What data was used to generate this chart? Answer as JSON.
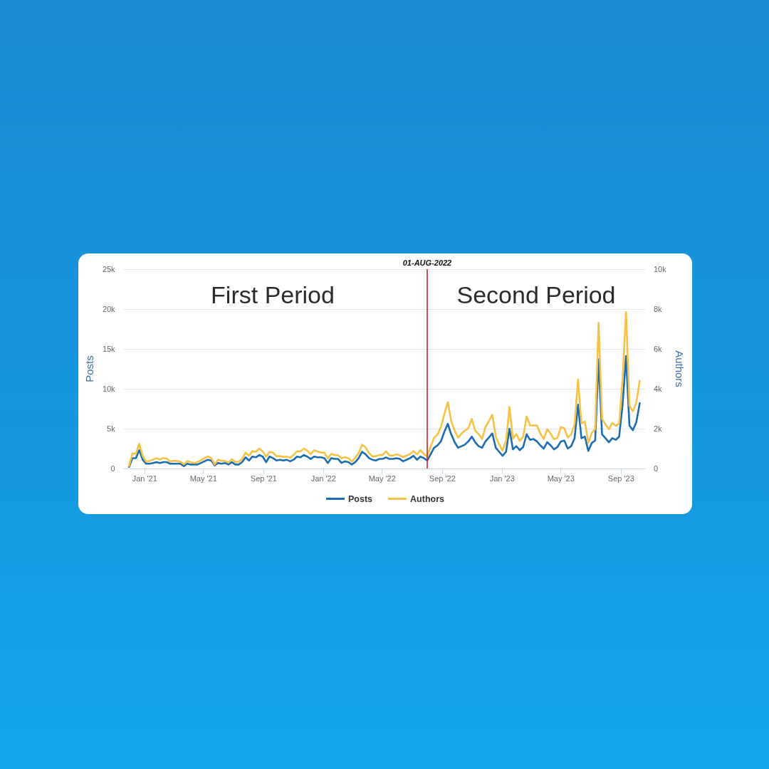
{
  "chart_data": {
    "type": "line",
    "ylabel": "Posts",
    "y2label": "Authors",
    "annotations": [
      "First Period",
      "Second Period"
    ],
    "x": [
      "2020-11-30",
      "2020-12-07",
      "2020-12-14",
      "2020-12-21",
      "2020-12-28",
      "2021-01-04",
      "2021-01-11",
      "2021-01-18",
      "2021-01-25",
      "2021-02-01",
      "2021-02-08",
      "2021-02-15",
      "2021-02-22",
      "2021-03-01",
      "2021-03-08",
      "2021-03-15",
      "2021-03-22",
      "2021-03-29",
      "2021-04-05",
      "2021-04-12",
      "2021-04-19",
      "2021-04-26",
      "2021-05-03",
      "2021-05-10",
      "2021-05-17",
      "2021-05-24",
      "2021-05-31",
      "2021-06-07",
      "2021-06-14",
      "2021-06-21",
      "2021-06-28",
      "2021-07-05",
      "2021-07-12",
      "2021-07-19",
      "2021-07-26",
      "2021-08-02",
      "2021-08-09",
      "2021-08-16",
      "2021-08-23",
      "2021-08-30",
      "2021-09-06",
      "2021-09-13",
      "2021-09-20",
      "2021-09-27",
      "2021-10-04",
      "2021-10-11",
      "2021-10-18",
      "2021-10-25",
      "2021-11-01",
      "2021-11-08",
      "2021-11-15",
      "2021-11-22",
      "2021-11-29",
      "2021-12-06",
      "2021-12-13",
      "2021-12-20",
      "2021-12-27",
      "2022-01-03",
      "2022-01-10",
      "2022-01-17",
      "2022-01-24",
      "2022-01-31",
      "2022-02-07",
      "2022-02-14",
      "2022-02-21",
      "2022-02-28",
      "2022-03-07",
      "2022-03-14",
      "2022-03-21",
      "2022-03-28",
      "2022-04-04",
      "2022-04-11",
      "2022-04-18",
      "2022-04-25",
      "2022-05-02",
      "2022-05-09",
      "2022-05-16",
      "2022-05-23",
      "2022-05-30",
      "2022-06-06",
      "2022-06-13",
      "2022-06-20",
      "2022-06-27",
      "2022-07-04",
      "2022-07-11",
      "2022-07-18",
      "2022-07-25",
      "2022-08-01",
      "2022-08-08",
      "2022-08-15",
      "2022-08-22",
      "2022-08-29",
      "2022-09-05",
      "2022-09-12",
      "2022-09-19",
      "2022-09-26",
      "2022-10-03",
      "2022-10-10",
      "2022-10-17",
      "2022-10-24",
      "2022-10-31",
      "2022-11-07",
      "2022-11-14",
      "2022-11-21",
      "2022-11-28",
      "2022-12-05",
      "2022-12-12",
      "2022-12-19",
      "2022-12-26",
      "2023-01-02",
      "2023-01-09",
      "2023-01-16",
      "2023-01-23",
      "2023-01-30",
      "2023-02-06",
      "2023-02-13",
      "2023-02-20",
      "2023-02-27",
      "2023-03-06",
      "2023-03-13",
      "2023-03-20",
      "2023-03-27",
      "2023-04-03",
      "2023-04-10",
      "2023-04-17",
      "2023-04-24",
      "2023-05-01",
      "2023-05-08",
      "2023-05-15",
      "2023-05-22",
      "2023-05-29",
      "2023-06-05",
      "2023-06-12",
      "2023-06-19",
      "2023-06-26",
      "2023-07-03",
      "2023-07-10",
      "2023-07-17",
      "2023-07-24",
      "2023-07-31",
      "2023-08-07",
      "2023-08-14",
      "2023-08-21",
      "2023-08-28",
      "2023-09-04",
      "2023-09-11",
      "2023-09-18",
      "2023-09-25",
      "2023-10-02",
      "2023-10-09"
    ],
    "series": [
      {
        "name": "Posts",
        "color": "#1b6cb0",
        "values": [
          200,
          1300,
          1300,
          2300,
          1100,
          600,
          600,
          700,
          800,
          700,
          800,
          800,
          600,
          600,
          600,
          600,
          300,
          600,
          500,
          500,
          500,
          700,
          900,
          1100,
          1000,
          400,
          700,
          600,
          700,
          500,
          800,
          500,
          500,
          800,
          1400,
          1000,
          1500,
          1400,
          1700,
          1500,
          800,
          1500,
          1300,
          1000,
          1100,
          1000,
          1100,
          900,
          1100,
          1500,
          1400,
          1700,
          1500,
          1200,
          1500,
          1400,
          1400,
          1300,
          700,
          1300,
          1200,
          1200,
          700,
          900,
          800,
          500,
          800,
          1300,
          2100,
          1800,
          1300,
          1100,
          1000,
          1200,
          1200,
          1400,
          1200,
          1200,
          1300,
          1200,
          900,
          1100,
          1300,
          1600,
          1100,
          1500,
          1300,
          1000,
          1800,
          2600,
          2900,
          3400,
          4600,
          5600,
          4300,
          3300,
          2600,
          2800,
          3000,
          3400,
          4000,
          3300,
          2800,
          2600,
          3400,
          3900,
          4400,
          2600,
          2100,
          1600,
          2100,
          5000,
          2400,
          2800,
          2300,
          2700,
          4300,
          3600,
          3700,
          3400,
          2900,
          2500,
          3300,
          2900,
          2400,
          2700,
          3400,
          3500,
          2500,
          2800,
          3800,
          8000,
          3800,
          4000,
          2200,
          3200,
          3500,
          13700,
          4300,
          3800,
          3300,
          3800,
          3600,
          4000,
          8000,
          14100,
          5400,
          4800,
          5800,
          8200
        ]
      },
      {
        "name": "Authors",
        "color": "#f6c245",
        "axis": "y2",
        "values": [
          130,
          760,
          740,
          1240,
          620,
          350,
          380,
          450,
          520,
          450,
          530,
          500,
          350,
          390,
          380,
          340,
          210,
          370,
          320,
          280,
          320,
          420,
          510,
          600,
          520,
          210,
          450,
          390,
          380,
          300,
          470,
          320,
          340,
          480,
          800,
          640,
          870,
          840,
          1000,
          860,
          590,
          830,
          800,
          620,
          620,
          590,
          600,
          540,
          680,
          860,
          860,
          1000,
          900,
          720,
          920,
          850,
          800,
          800,
          510,
          730,
          680,
          660,
          510,
          570,
          520,
          350,
          520,
          780,
          1190,
          1070,
          780,
          610,
          620,
          680,
          680,
          860,
          650,
          650,
          710,
          660,
          570,
          650,
          730,
          880,
          710,
          920,
          730,
          600,
          1100,
          1550,
          1700,
          2080,
          2730,
          3330,
          2380,
          1900,
          1550,
          1750,
          1900,
          2020,
          2490,
          1900,
          1730,
          1490,
          2080,
          2380,
          2690,
          1610,
          1200,
          900,
          1380,
          3080,
          1490,
          1730,
          1380,
          1610,
          2610,
          2160,
          2160,
          2160,
          1750,
          1480,
          1970,
          1750,
          1470,
          1540,
          2080,
          2020,
          1560,
          1710,
          2220,
          4470,
          2260,
          2360,
          1280,
          1790,
          1990,
          7300,
          2490,
          2220,
          1970,
          2290,
          2140,
          2260,
          4500,
          7850,
          3140,
          2870,
          3300,
          4400
        ]
      }
    ],
    "xlim": [
      "2020-11-19",
      "2023-10-20"
    ],
    "xticks": [
      {
        "value": "2021-01-01",
        "label": "Jan '21"
      },
      {
        "value": "2021-05-01",
        "label": "May '21"
      },
      {
        "value": "2021-09-01",
        "label": "Sep '21"
      },
      {
        "value": "2022-01-01",
        "label": "Jan '22"
      },
      {
        "value": "2022-05-01",
        "label": "May '22"
      },
      {
        "value": "2022-09-01",
        "label": "Sep '22"
      },
      {
        "value": "2023-01-01",
        "label": "Jan '23"
      },
      {
        "value": "2023-05-01",
        "label": "May '23"
      },
      {
        "value": "2023-09-01",
        "label": "Sep '23"
      }
    ],
    "ylim": [
      0,
      25000
    ],
    "yticks": [
      0,
      {
        "value": 5000,
        "label": "5k"
      },
      {
        "value": 10000,
        "label": "10k"
      },
      {
        "value": 15000,
        "label": "15k"
      },
      {
        "value": 20000,
        "label": "20k"
      },
      {
        "value": 25000,
        "label": "25k"
      }
    ],
    "y2lim": [
      0,
      10000
    ],
    "y2ticks": [
      0,
      {
        "value": 2000,
        "label": "2k"
      },
      {
        "value": 4000,
        "label": "4k"
      },
      {
        "value": 6000,
        "label": "6k"
      },
      {
        "value": 8000,
        "label": "8k"
      },
      {
        "value": 10000,
        "label": "10k"
      }
    ],
    "ref_lines": [
      {
        "axis": "x",
        "value": "2022-08-01",
        "label": "01-AUG-2022",
        "color": "#c0272d"
      }
    ],
    "grid": "y",
    "legend": "bottom",
    "marker": "none"
  }
}
